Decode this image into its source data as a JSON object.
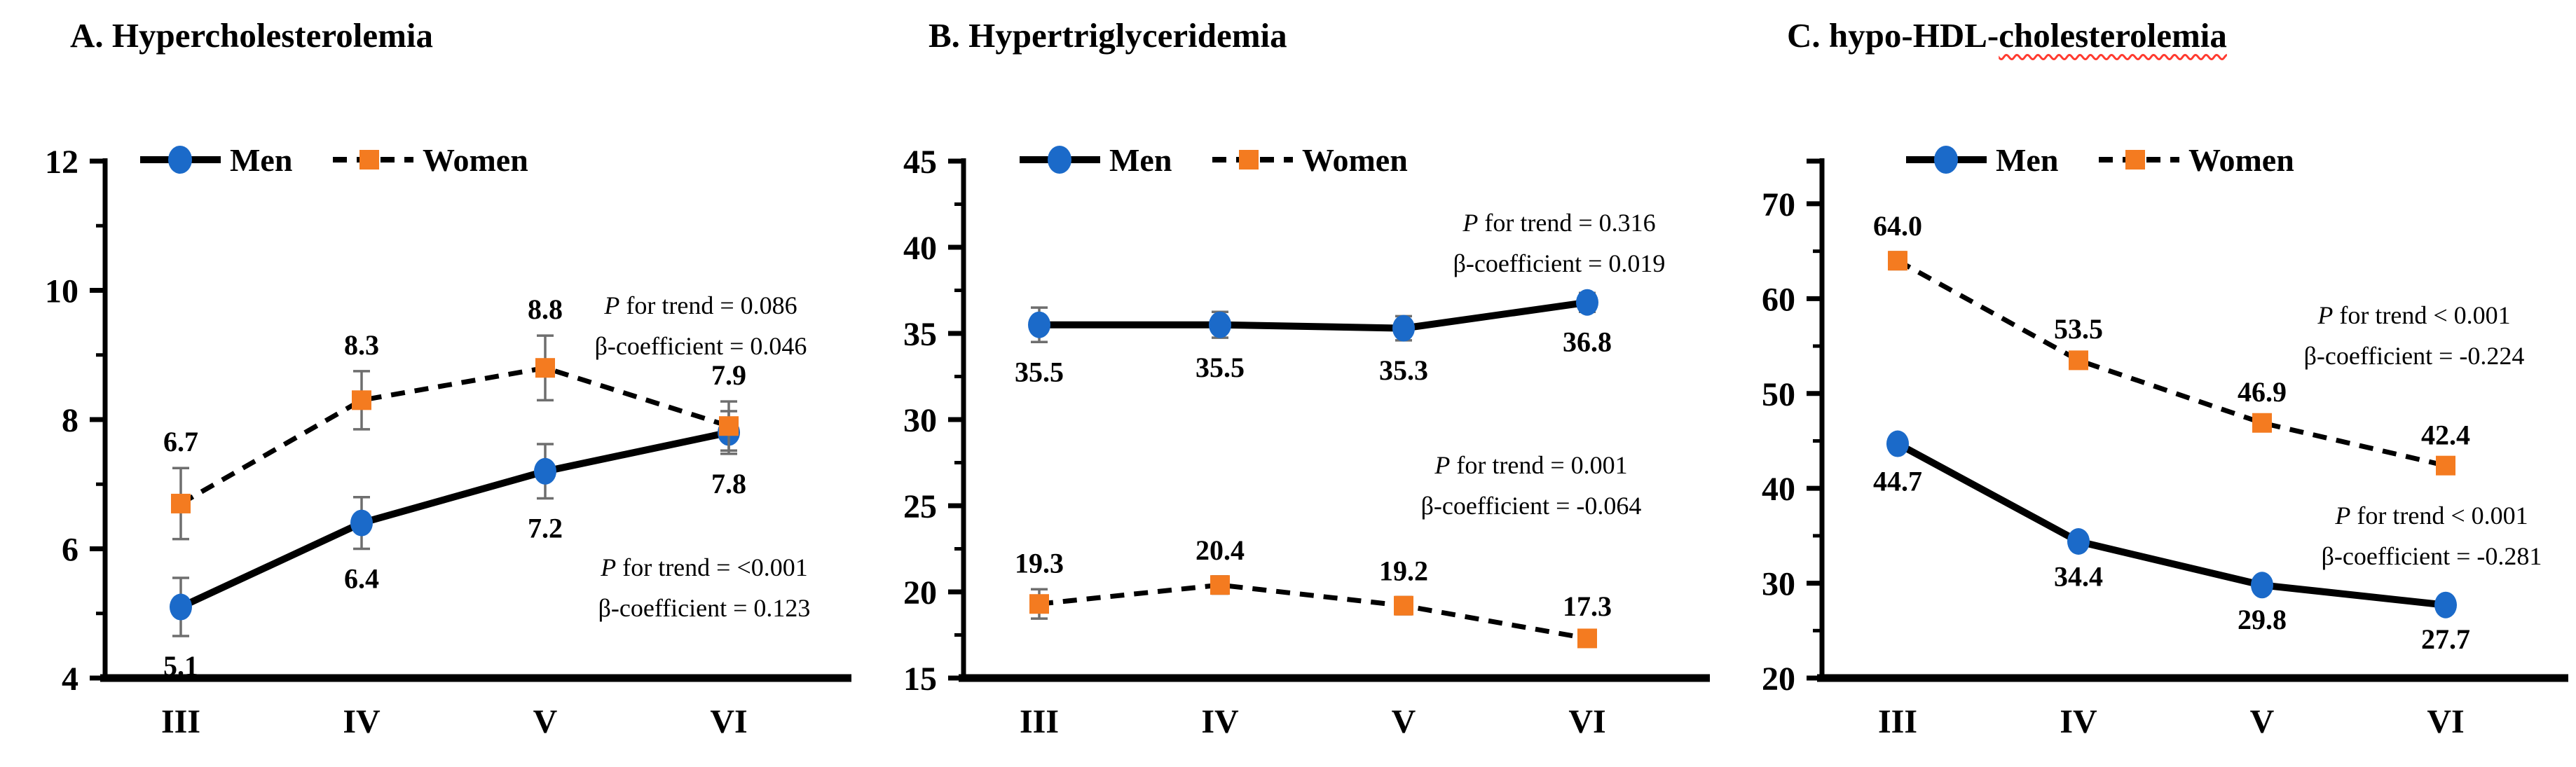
{
  "colors": {
    "men_marker": "#1B6AC9",
    "women_marker": "#F47B20",
    "line": "#000000",
    "error_bar": "#6e6e6e",
    "spellcheck_underline": "#ff3b30"
  },
  "chart_data": [
    {
      "type": "line",
      "panel": "A",
      "title": "A. Hypercholesterolemia",
      "title_wavy": "",
      "categories": [
        "III",
        "IV",
        "V",
        "VI"
      ],
      "y_axis": {
        "min": 4,
        "top": 12,
        "ticks": [
          12,
          10,
          8,
          6,
          4
        ],
        "minor": [
          11,
          9,
          7,
          5
        ]
      },
      "series": [
        {
          "name": "Men",
          "marker": "circle",
          "line": "solid",
          "values": [
            5.1,
            6.4,
            7.2,
            7.8
          ],
          "errors": [
            0.45,
            0.4,
            0.42,
            0.33
          ],
          "labels": [
            "5.1",
            "6.4",
            "7.2",
            "7.8"
          ],
          "label_side": "below"
        },
        {
          "name": "Women",
          "marker": "square",
          "line": "dashed",
          "values": [
            6.7,
            8.3,
            8.8,
            7.9
          ],
          "errors": [
            0.55,
            0.45,
            0.5,
            0.38
          ],
          "labels": [
            "6.7",
            "8.3",
            "8.8",
            "7.9"
          ],
          "label_side": "above"
        }
      ],
      "annotations": [
        {
          "lines": [
            "P for trend = 0.086",
            "β-coefficient = 0.046"
          ],
          "x": 1000,
          "y": 448
        },
        {
          "lines": [
            "P for trend = <0.001",
            "β-coefficient = 0.123"
          ],
          "x": 1005,
          "y": 822
        }
      ],
      "legend": {
        "x": 200,
        "items": [
          "Men",
          "Women"
        ]
      }
    },
    {
      "type": "line",
      "panel": "B",
      "title": "B. Hypertriglyceridemia",
      "title_wavy": "",
      "categories": [
        "III",
        "IV",
        "V",
        "VI"
      ],
      "y_axis": {
        "min": 15,
        "top": 45,
        "ticks": [
          45,
          40,
          35,
          30,
          25,
          20,
          15
        ],
        "minor": [
          42.5,
          37.5,
          32.5,
          27.5,
          22.5,
          17.5
        ]
      },
      "series": [
        {
          "name": "Men",
          "marker": "circle",
          "line": "solid",
          "values": [
            35.5,
            35.5,
            35.3,
            36.8
          ],
          "errors": [
            1.0,
            0.75,
            0.7,
            0.55
          ],
          "labels": [
            "35.5",
            "35.5",
            "35.3",
            "36.8"
          ],
          "label_side": "below"
        },
        {
          "name": "Women",
          "marker": "square",
          "line": "dashed",
          "values": [
            19.3,
            20.4,
            19.2,
            17.3
          ],
          "errors": [
            0.85,
            0.5,
            0.5,
            0.35
          ],
          "labels": [
            "19.3",
            "20.4",
            "19.2",
            "17.3"
          ],
          "label_side": "above"
        }
      ],
      "annotations": [
        {
          "lines": [
            "P for trend = 0.316",
            "β-coefficient = 0.019"
          ],
          "x": 1000,
          "y": 330
        },
        {
          "lines": [
            "P for trend = 0.001",
            "β-coefficient = -0.064"
          ],
          "x": 960,
          "y": 676
        }
      ],
      "legend": {
        "x": 230,
        "items": [
          "Men",
          "Women"
        ]
      }
    },
    {
      "type": "line",
      "panel": "C",
      "title": "C. hypo-HDL-",
      "title_wavy": "cholesterolemia",
      "categories": [
        "III",
        "IV",
        "V",
        "VI"
      ],
      "y_axis": {
        "min": 20,
        "top": 74.5,
        "ticks": [
          70,
          60,
          50,
          40,
          30,
          20
        ],
        "minor": [
          65,
          55,
          45,
          35,
          25
        ]
      },
      "series": [
        {
          "name": "Men",
          "marker": "circle",
          "line": "solid",
          "values": [
            44.7,
            34.4,
            29.8,
            27.7
          ],
          "errors": [
            0.8,
            0.55,
            0.5,
            0.45
          ],
          "labels": [
            "44.7",
            "34.4",
            "29.8",
            "27.7"
          ],
          "label_side": "below"
        },
        {
          "name": "Women",
          "marker": "square",
          "line": "dashed",
          "values": [
            64.0,
            53.5,
            46.9,
            42.4
          ],
          "errors": [
            0.9,
            0.55,
            0.5,
            0.45
          ],
          "labels": [
            "64.0",
            "53.5",
            "46.9",
            "42.4"
          ],
          "label_side": "above"
        }
      ],
      "annotations": [
        {
          "lines": [
            "P for trend < 0.001",
            "β-coefficient = -0.224"
          ],
          "x": 995,
          "y": 462
        },
        {
          "lines": [
            "P for trend < 0.001",
            "β-coefficient = -0.281"
          ],
          "x": 1020,
          "y": 748
        }
      ],
      "legend": {
        "x": 270,
        "items": [
          "Men",
          "Women"
        ]
      }
    }
  ]
}
